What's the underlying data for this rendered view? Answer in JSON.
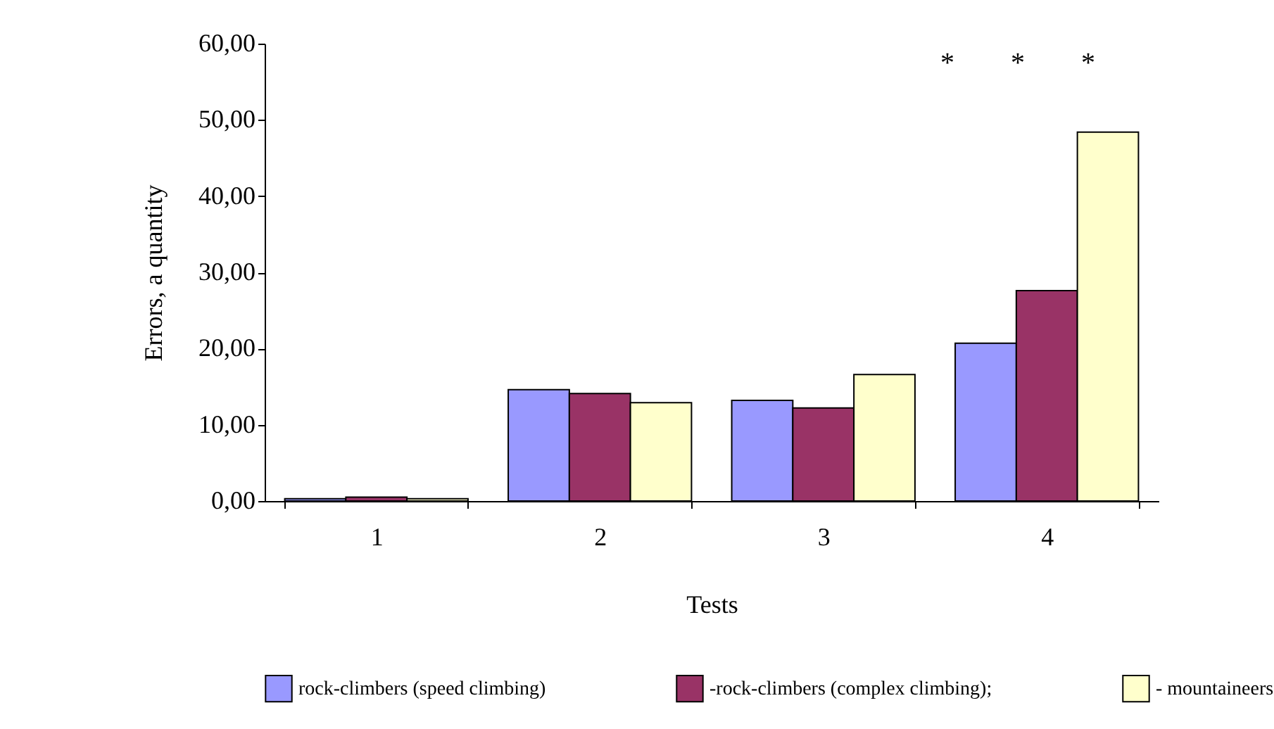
{
  "chart_data": {
    "type": "bar",
    "xlabel": "Tests",
    "ylabel": "Errors, a quantity",
    "categories": [
      "1",
      "2",
      "3",
      "4"
    ],
    "series": [
      {
        "name": "rock-climbers (speed climbing)",
        "color": "#9999ff",
        "values": [
          0.3,
          14.6,
          13.2,
          20.7
        ]
      },
      {
        "name": "-rock-climbers (complex climbing);",
        "color": "#993366",
        "values": [
          0.5,
          14.1,
          12.2,
          27.6
        ]
      },
      {
        "name": "-  mountaineers",
        "color": "#ffffcc",
        "values": [
          0.3,
          12.9,
          16.6,
          48.4
        ]
      }
    ],
    "ylim": [
      0,
      60
    ],
    "yticks": [
      {
        "value": 0,
        "label": "0,00"
      },
      {
        "value": 10,
        "label": "10,00"
      },
      {
        "value": 20,
        "label": "20,00"
      },
      {
        "value": 30,
        "label": "30,00"
      },
      {
        "value": 40,
        "label": "40,00"
      },
      {
        "value": 50,
        "label": "50,00"
      },
      {
        "value": 60,
        "label": "60,00"
      }
    ],
    "annotations": [
      "*",
      "*",
      "*"
    ],
    "legend": "bottom",
    "grid": false
  }
}
